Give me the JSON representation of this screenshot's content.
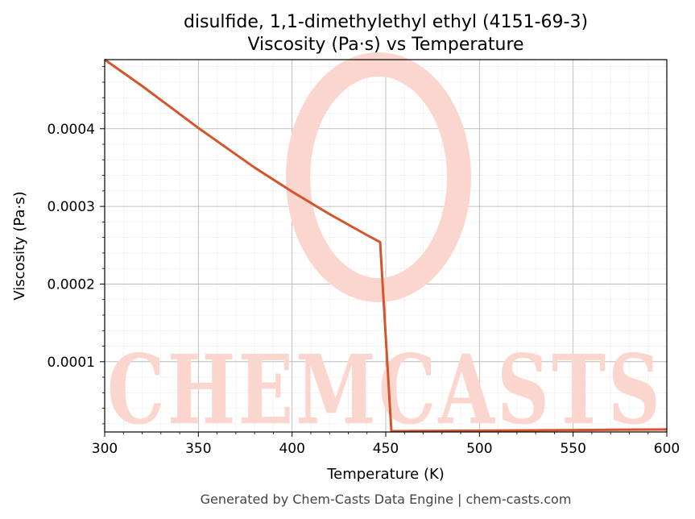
{
  "chart_data": {
    "type": "line",
    "title": "disulfide, 1,1-dimethylethyl ethyl (4151-69-3)",
    "subtitle": "Viscosity (Pa·s) vs Temperature",
    "xlabel": "Temperature (K)",
    "ylabel": "Viscosity (Pa·s)",
    "xlim": [
      300,
      600
    ],
    "ylim": [
      9.5e-06,
      0.000489
    ],
    "x_ticks": [
      300,
      350,
      400,
      450,
      500,
      550,
      600
    ],
    "y_ticks": [
      0.0001,
      0.0002,
      0.0003,
      0.0004
    ],
    "x_tick_labels": [
      "300",
      "350",
      "400",
      "450",
      "500",
      "550",
      "600"
    ],
    "y_tick_labels": [
      "0.0001",
      "0.0002",
      "0.0003",
      "0.0004"
    ],
    "grid": true,
    "series": [
      {
        "color": "#d4552b",
        "x": [
          300,
          320,
          340,
          350,
          360,
          380,
          400,
          420,
          440,
          447,
          453,
          460,
          500,
          550,
          600
        ],
        "y": [
          0.000489,
          0.000455,
          0.000419,
          0.000401,
          0.000384,
          0.00035,
          0.000319,
          0.00029,
          0.000263,
          0.000254,
          1.05e-05,
          1.06e-05,
          1.12e-05,
          1.2e-05,
          1.28e-05
        ]
      }
    ]
  },
  "watermark": {
    "text": "CHEMCASTS",
    "color": "#fbd6cf"
  },
  "footer": "Generated by Chem-Casts Data Engine | chem-casts.com"
}
